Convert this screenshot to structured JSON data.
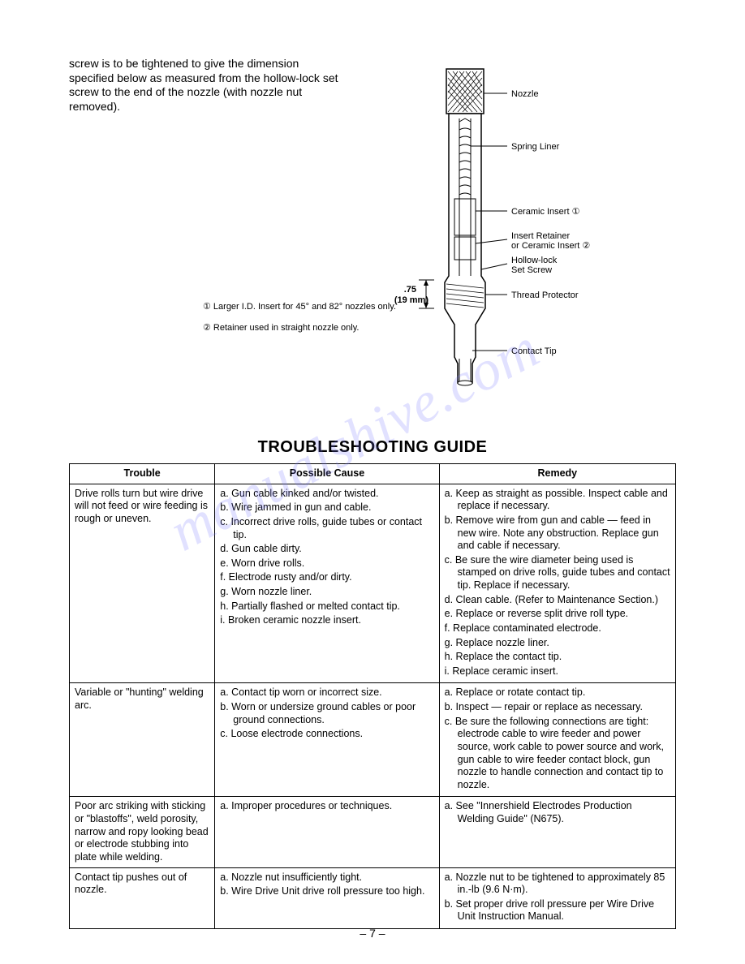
{
  "intro": "screw is to be tightened to give the dimension specified below as measured from the hollow-lock set screw to the end of the nozzle (with nozzle nut removed).",
  "footnote1": "① Larger I.D. Insert for 45° and 82° nozzles only.",
  "footnote2": "② Retainer used in straight nozzle only.",
  "diagram": {
    "labels": {
      "nozzle": "Nozzle",
      "spring": "Spring Liner",
      "ceramic": "Ceramic Insert ①",
      "retainer_l1": "Insert Retainer",
      "retainer_l2": "or Ceramic Insert ②",
      "hollow_l1": "Hollow-lock",
      "hollow_l2": "Set Screw",
      "thread": "Thread Protector",
      "contact": "Contact Tip",
      "dim": ".75",
      "dim_mm": "(19 mm)"
    }
  },
  "guide_title": "TROUBLESHOOTING GUIDE",
  "headers": {
    "trouble": "Trouble",
    "cause": "Possible Cause",
    "remedy": "Remedy"
  },
  "rows": [
    {
      "trouble": "Drive rolls turn but wire drive will not feed or wire feeding is rough or uneven.",
      "causes": [
        "a. Gun cable kinked and/or twisted.",
        "b. Wire jammed in gun and cable.",
        "c. Incorrect drive rolls, guide tubes or contact tip.",
        "d. Gun cable dirty.",
        "e. Worn drive rolls.",
        "f. Electrode rusty and/or dirty.",
        "g. Worn nozzle liner.",
        "h. Partially flashed or melted contact tip.",
        "i. Broken ceramic nozzle insert."
      ],
      "remedies": [
        "a. Keep as straight as possible. Inspect cable and replace if necessary.",
        "b. Remove wire from gun and cable — feed in new wire. Note any obstruction. Replace gun and cable if necessary.",
        "c. Be sure the wire diameter being used is stamped on drive rolls, guide tubes and contact tip. Replace if necessary.",
        "d. Clean cable. (Refer to Maintenance Section.)",
        "e. Replace or reverse split drive roll type.",
        "f. Replace contaminated electrode.",
        "g. Replace nozzle liner.",
        "h. Replace the contact tip.",
        "i. Replace ceramic insert."
      ]
    },
    {
      "trouble": "Variable or \"hunting\" welding arc.",
      "causes": [
        "a. Contact tip worn or incorrect size.",
        "b. Worn or undersize ground cables or poor ground connections.",
        "c. Loose electrode connections."
      ],
      "remedies": [
        "a. Replace or rotate contact tip.",
        "b. Inspect — repair or replace as necessary.",
        "c. Be sure the following connections are tight: electrode cable to wire feeder and power source, work cable to power source and work, gun cable to wire feeder contact block, gun nozzle to handle connection and contact tip to nozzle."
      ]
    },
    {
      "trouble": "Poor arc striking with sticking or \"blastoffs\", weld porosity, narrow and ropy looking bead or electrode stubbing into plate while welding.",
      "causes": [
        "a. Improper procedures or techniques."
      ],
      "remedies": [
        "a. See \"Innershield Electrodes Production Welding Guide\" (N675)."
      ]
    },
    {
      "trouble": "Contact tip pushes out of nozzle.",
      "causes": [
        "a. Nozzle nut insufficiently tight.",
        "b. Wire Drive Unit drive roll pressure too high."
      ],
      "remedies": [
        "a. Nozzle nut to be tightened to approximately 85 in.-lb (9.6 N·m).",
        "b. Set proper drive roll pressure per Wire Drive Unit Instruction Manual."
      ]
    }
  ],
  "page_number": "– 7 –",
  "watermark": "manualshive.com",
  "colors": {
    "text": "#000000",
    "bg": "#ffffff",
    "watermark": "rgba(120,120,255,0.22)"
  }
}
